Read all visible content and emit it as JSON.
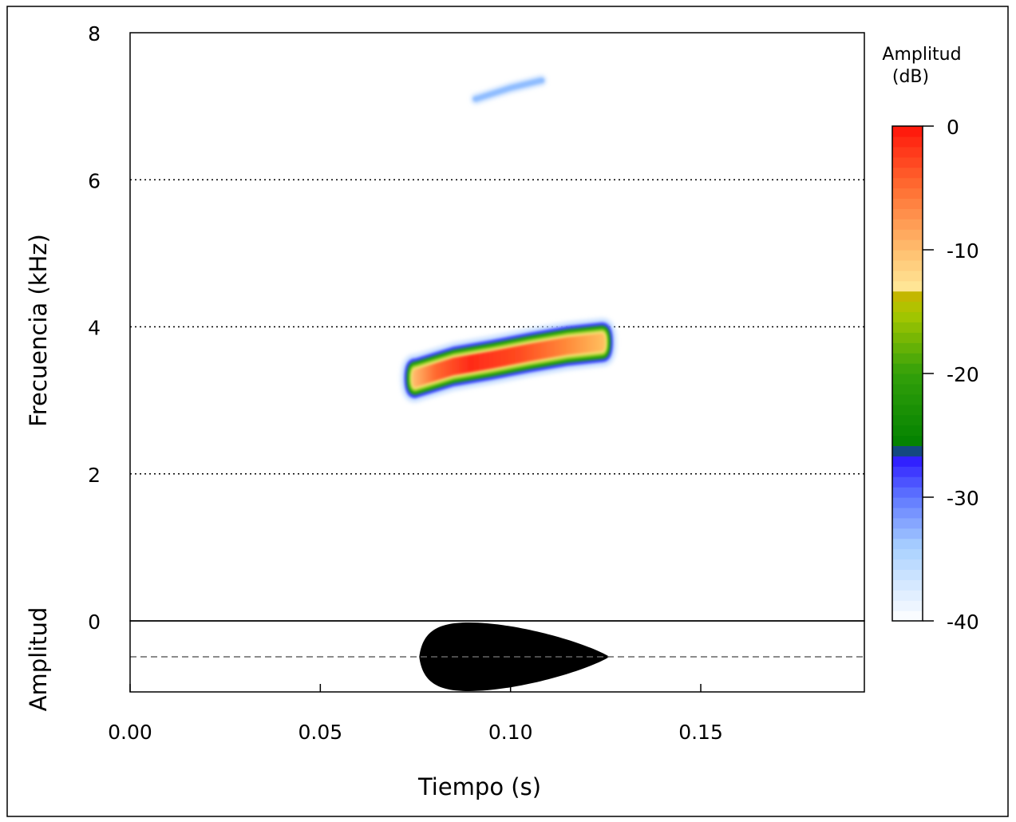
{
  "chart_data": {
    "type": "heatmap",
    "subtype": "spectrogram-with-oscillogram",
    "xlabel": "Tiempo (s)",
    "ylabel": "Frecuencia (kHz)",
    "oscillogram_ylabel": "Amplitud",
    "xlim": [
      0,
      0.193
    ],
    "ylim": [
      0,
      8
    ],
    "x_ticks": [
      "0.00",
      "0.05",
      "0.10",
      "0.15"
    ],
    "x_tick_values": [
      0,
      0.05,
      0.1,
      0.15
    ],
    "y_ticks": [
      "2",
      "4",
      "6",
      "8"
    ],
    "y_tick_values": [
      2,
      4,
      6,
      8
    ],
    "oscillogram_tick": "0",
    "gridlines_y": [
      2,
      4,
      6
    ],
    "grid_style": "dotted",
    "colorbar": {
      "title_line1": "Amplitud",
      "title_line2": "(dB)",
      "ticks": [
        "0",
        "-10",
        "-20",
        "-30",
        "-40"
      ],
      "tick_values": [
        0,
        -10,
        -20,
        -30,
        -40
      ],
      "range": [
        -40,
        0
      ],
      "placement": "right"
    },
    "calls": [
      {
        "time_start": 0.074,
        "time_end": 0.129,
        "freq_center_khz": [
          [
            0.075,
            3.3
          ],
          [
            0.085,
            3.46
          ],
          [
            0.095,
            3.55
          ],
          [
            0.105,
            3.65
          ],
          [
            0.115,
            3.74
          ],
          [
            0.124,
            3.79
          ]
        ],
        "peak_db": 0
      },
      {
        "time_start": 0.09,
        "time_end": 0.108,
        "freq_center_khz": [
          [
            0.091,
            7.1
          ],
          [
            0.1,
            7.25
          ],
          [
            0.108,
            7.35
          ]
        ],
        "peak_db": -35
      }
    ],
    "oscillogram": {
      "onset_s": 0.076,
      "peak_s": 0.089,
      "offset_s": 0.126
    }
  }
}
